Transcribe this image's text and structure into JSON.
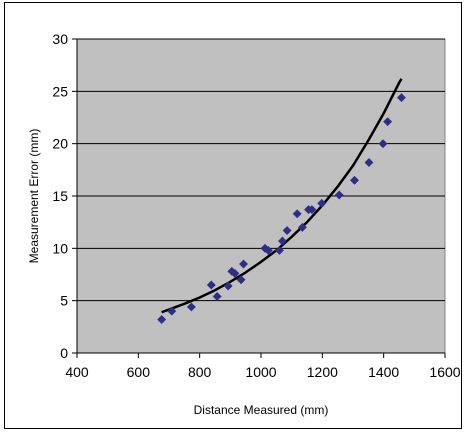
{
  "chart_data": {
    "type": "scatter",
    "title": "",
    "xlabel": "Distance Measured (mm)",
    "ylabel": "Measurement Error (mm)",
    "xlim": [
      400,
      1600
    ],
    "ylim": [
      0,
      30
    ],
    "xticks": [
      400,
      600,
      800,
      1000,
      1200,
      1400,
      1600
    ],
    "yticks": [
      0,
      5,
      10,
      15,
      20,
      25,
      30
    ],
    "grid": "horizontal",
    "legend": "none",
    "colors": {
      "plot_background": "#c0c0c0",
      "marker": "#2e2e86",
      "trendline": "#000000",
      "gridline": "#000000"
    },
    "series": [
      {
        "marker": "diamond",
        "x": [
          676,
          709,
          773,
          838,
          857,
          893,
          905,
          915,
          935,
          943,
          1013,
          1024,
          1060,
          1070,
          1085,
          1118,
          1135,
          1155,
          1166,
          1198,
          1255,
          1305,
          1352,
          1398,
          1413,
          1458
        ],
        "y": [
          3.2,
          4.0,
          4.4,
          6.5,
          5.4,
          6.4,
          7.8,
          7.6,
          7.0,
          8.5,
          10.0,
          9.8,
          9.8,
          10.7,
          11.7,
          13.3,
          12.0,
          13.7,
          13.7,
          14.3,
          15.1,
          16.5,
          18.2,
          20.0,
          22.1,
          24.4
        ]
      }
    ],
    "trendline": {
      "type": "exponential",
      "x": [
        676,
        700,
        750,
        800,
        850,
        900,
        950,
        1000,
        1050,
        1100,
        1150,
        1200,
        1250,
        1300,
        1350,
        1400,
        1450,
        1458
      ],
      "y": [
        3.9,
        4.15,
        4.7,
        5.3,
        6.0,
        6.8,
        7.7,
        8.7,
        9.8,
        11.1,
        12.5,
        14.1,
        15.9,
        17.9,
        20.3,
        22.9,
        25.8,
        26.2
      ]
    }
  }
}
